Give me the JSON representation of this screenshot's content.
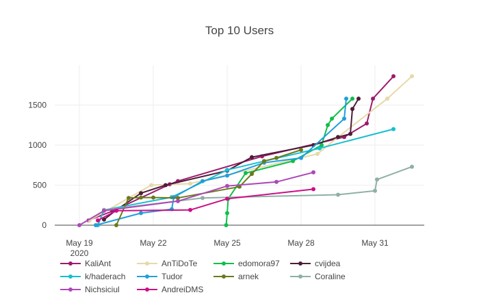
{
  "chart_data": {
    "type": "line",
    "title": "Top 10 Users",
    "xlabel": "",
    "ylabel": "",
    "x_axis": {
      "type": "date",
      "range": [
        "2020-05-18",
        "2020-06-02"
      ],
      "ticks": [
        {
          "date": "2020-05-19",
          "label": "May 19",
          "sublabel": "2020"
        },
        {
          "date": "2020-05-22",
          "label": "May 22",
          "sublabel": ""
        },
        {
          "date": "2020-05-25",
          "label": "May 25",
          "sublabel": ""
        },
        {
          "date": "2020-05-28",
          "label": "May 28",
          "sublabel": ""
        },
        {
          "date": "2020-05-31",
          "label": "May 31",
          "sublabel": ""
        }
      ]
    },
    "y_axis": {
      "range": [
        0,
        2000
      ],
      "ticks": [
        0,
        500,
        1000,
        1500
      ]
    },
    "grid": true,
    "legend_position": "bottom",
    "series": [
      {
        "name": "KaliAnt",
        "color": "#9c1c6b",
        "points": [
          {
            "x": "2020-05-19 09:00",
            "y": 60
          },
          {
            "x": "2020-05-20 08:00",
            "y": 175
          },
          {
            "x": "2020-05-22 16:00",
            "y": 510
          },
          {
            "x": "2020-05-23 00:00",
            "y": 550
          },
          {
            "x": "2020-05-26 10:00",
            "y": 860
          },
          {
            "x": "2020-05-29 18:00",
            "y": 1100
          },
          {
            "x": "2020-05-30 16:00",
            "y": 1270
          },
          {
            "x": "2020-05-30 22:00",
            "y": 1580
          },
          {
            "x": "2020-05-31 18:00",
            "y": 1860
          }
        ]
      },
      {
        "name": "AnTiDoTe",
        "color": "#e6d9a8",
        "points": [
          {
            "x": "2020-05-19 10:00",
            "y": 60
          },
          {
            "x": "2020-05-21 22:00",
            "y": 500
          },
          {
            "x": "2020-05-23 12:00",
            "y": 520
          },
          {
            "x": "2020-05-28 16:00",
            "y": 890
          },
          {
            "x": "2020-05-29 12:00",
            "y": 1100
          },
          {
            "x": "2020-05-31 12:00",
            "y": 1580
          },
          {
            "x": "2020-06-01 12:00",
            "y": 1860
          }
        ]
      },
      {
        "name": "edomora97",
        "color": "#0fbf4a",
        "points": [
          {
            "x": "2020-05-24 23:00",
            "y": 0
          },
          {
            "x": "2020-05-25 00:00",
            "y": 150
          },
          {
            "x": "2020-05-25 01:00",
            "y": 330
          },
          {
            "x": "2020-05-25 18:00",
            "y": 650
          },
          {
            "x": "2020-05-27 16:00",
            "y": 800
          },
          {
            "x": "2020-05-28 20:00",
            "y": 1000
          },
          {
            "x": "2020-05-29 02:00",
            "y": 1250
          },
          {
            "x": "2020-05-29 06:00",
            "y": 1330
          },
          {
            "x": "2020-05-30 02:00",
            "y": 1580
          }
        ]
      },
      {
        "name": "cvijdea",
        "color": "#4e1c39",
        "points": [
          {
            "x": "2020-05-20 00:00",
            "y": 70
          },
          {
            "x": "2020-05-20 12:00",
            "y": 190
          },
          {
            "x": "2020-05-21 12:00",
            "y": 400
          },
          {
            "x": "2020-05-22 12:00",
            "y": 500
          },
          {
            "x": "2020-05-25 00:00",
            "y": 680
          },
          {
            "x": "2020-05-26 00:00",
            "y": 850
          },
          {
            "x": "2020-05-28 12:00",
            "y": 1000
          },
          {
            "x": "2020-05-29 12:00",
            "y": 1100
          },
          {
            "x": "2020-05-30 00:00",
            "y": 1140
          },
          {
            "x": "2020-05-30 02:00",
            "y": 1450
          },
          {
            "x": "2020-05-30 08:00",
            "y": 1580
          }
        ]
      },
      {
        "name": "k/haderach",
        "color": "#17becf",
        "points": [
          {
            "x": "2020-05-19 18:00",
            "y": 0
          },
          {
            "x": "2020-05-20 00:00",
            "y": 190
          },
          {
            "x": "2020-05-22 18:00",
            "y": 350
          },
          {
            "x": "2020-05-25 00:00",
            "y": 690
          },
          {
            "x": "2020-05-26 12:00",
            "y": 800
          },
          {
            "x": "2020-05-28 18:00",
            "y": 960
          },
          {
            "x": "2020-05-31 18:00",
            "y": 1200
          }
        ]
      },
      {
        "name": "Tudor",
        "color": "#1f9fdc",
        "points": [
          {
            "x": "2020-05-19 16:00",
            "y": 0
          },
          {
            "x": "2020-05-21 12:00",
            "y": 150
          },
          {
            "x": "2020-05-22 18:00",
            "y": 200
          },
          {
            "x": "2020-05-22 20:00",
            "y": 350
          },
          {
            "x": "2020-05-24 00:00",
            "y": 550
          },
          {
            "x": "2020-05-25 00:00",
            "y": 620
          },
          {
            "x": "2020-05-26 12:00",
            "y": 780
          },
          {
            "x": "2020-05-28 00:00",
            "y": 840
          },
          {
            "x": "2020-05-29 18:00",
            "y": 1330
          },
          {
            "x": "2020-05-29 20:00",
            "y": 1580
          }
        ]
      },
      {
        "name": "arnek",
        "color": "#6b7a1a",
        "points": [
          {
            "x": "2020-05-20 12:00",
            "y": 0
          },
          {
            "x": "2020-05-21 00:00",
            "y": 340
          },
          {
            "x": "2020-05-21 12:00",
            "y": 345
          },
          {
            "x": "2020-05-22 00:00",
            "y": 345
          },
          {
            "x": "2020-05-23 00:00",
            "y": 340
          },
          {
            "x": "2020-05-25 12:00",
            "y": 480
          },
          {
            "x": "2020-05-26 00:00",
            "y": 640
          },
          {
            "x": "2020-05-26 12:00",
            "y": 800
          },
          {
            "x": "2020-05-27 00:00",
            "y": 840
          },
          {
            "x": "2020-05-28 00:00",
            "y": 940
          }
        ]
      },
      {
        "name": "Coraline",
        "color": "#8fb0a4",
        "points": [
          {
            "x": "2020-05-20 00:00",
            "y": 190
          },
          {
            "x": "2020-05-24 00:00",
            "y": 340
          },
          {
            "x": "2020-05-29 12:00",
            "y": 380
          },
          {
            "x": "2020-05-31 00:00",
            "y": 430
          },
          {
            "x": "2020-05-31 02:00",
            "y": 570
          },
          {
            "x": "2020-06-01 12:00",
            "y": 730
          }
        ]
      },
      {
        "name": "Nichsiciul",
        "color": "#ad48b8",
        "points": [
          {
            "x": "2020-05-19 00:00",
            "y": 0
          },
          {
            "x": "2020-05-20 00:00",
            "y": 180
          },
          {
            "x": "2020-05-23 00:00",
            "y": 300
          },
          {
            "x": "2020-05-25 00:00",
            "y": 490
          },
          {
            "x": "2020-05-27 00:00",
            "y": 540
          },
          {
            "x": "2020-05-28 12:00",
            "y": 660
          }
        ]
      },
      {
        "name": "AndreiDMS",
        "color": "#cc0e86",
        "points": [
          {
            "x": "2020-05-19 18:00",
            "y": 60
          },
          {
            "x": "2020-05-20 12:00",
            "y": 180
          },
          {
            "x": "2020-05-23 12:00",
            "y": 190
          },
          {
            "x": "2020-05-25 00:00",
            "y": 330
          },
          {
            "x": "2020-05-28 12:00",
            "y": 450
          }
        ]
      }
    ]
  }
}
